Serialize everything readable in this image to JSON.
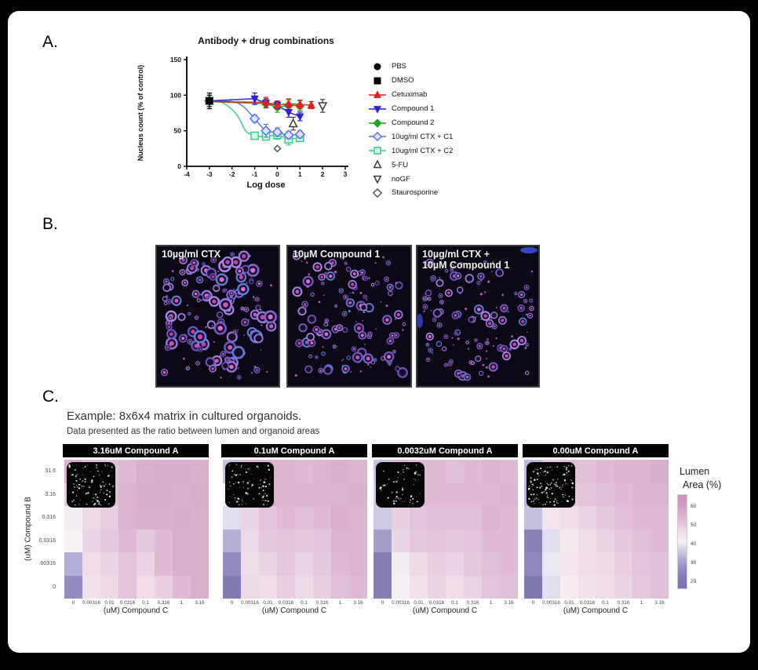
{
  "figure": {
    "panel_a_label": "A.",
    "panel_b_label": "B.",
    "panel_c_label": "C."
  },
  "panel_b": {
    "images": [
      {
        "label_lines": [
          "10µg/ml CTX"
        ]
      },
      {
        "label_lines": [
          "10µM Compound 1"
        ]
      },
      {
        "label_lines": [
          "10µg/ml CTX +",
          "10µM Compound 1"
        ]
      }
    ]
  },
  "panel_c": {
    "title": "Example: 8x6x4 matrix in cultured organoids.",
    "subtitle": "Data presented as the ratio between lumen and organoid areas"
  },
  "chart_data": [
    {
      "type": "scatter",
      "title": "Antibody + drug combinations",
      "xlabel": "Log dose",
      "ylabel": "Nucleus count (% of control)",
      "xlim": [
        -4,
        3
      ],
      "ylim": [
        0,
        150
      ],
      "xticks": [
        -4,
        -3,
        -2,
        -1,
        0,
        1,
        2,
        3
      ],
      "yticks": [
        0,
        50,
        100,
        150
      ],
      "legend_position": "right",
      "series": [
        {
          "name": "PBS",
          "marker": "circle",
          "color": "#000000",
          "filled": true,
          "x": [
            -3
          ],
          "y": [
            92
          ],
          "yerr": [
            11
          ]
        },
        {
          "name": "DMSO",
          "marker": "square",
          "color": "#000000",
          "filled": true,
          "x": [
            -3
          ],
          "y": [
            92
          ],
          "yerr": [
            8
          ]
        },
        {
          "name": "Cetuximab",
          "marker": "triangle-up",
          "color": "#e3201f",
          "filled": true,
          "x": [
            -0.5,
            0,
            0.5,
            1,
            1.5
          ],
          "y": [
            90,
            86,
            88,
            87,
            86
          ],
          "yerr": [
            7,
            6,
            6,
            6,
            5
          ],
          "line": [
            [
              -3,
              91
            ],
            [
              -0.5,
              90
            ],
            [
              0,
              86
            ],
            [
              0.5,
              88
            ],
            [
              1,
              87
            ],
            [
              1.5,
              86
            ]
          ]
        },
        {
          "name": "Compound 1",
          "marker": "triangle-down",
          "color": "#2b23d6",
          "filled": true,
          "x": [
            -1,
            -0.5,
            0,
            0.5,
            1
          ],
          "y": [
            95,
            89,
            86,
            76,
            70
          ],
          "yerr": [
            8,
            6,
            5,
            7,
            6
          ],
          "line": [
            [
              -3,
              92
            ],
            [
              -1,
              95
            ],
            [
              -0.5,
              89
            ],
            [
              0,
              86
            ],
            [
              0.5,
              76
            ],
            [
              1,
              70
            ]
          ]
        },
        {
          "name": "Compound 2",
          "marker": "diamond",
          "color": "#1fa51f",
          "filled": true,
          "x": [
            -0.5,
            0,
            0.5,
            1
          ],
          "y": [
            88,
            83,
            86,
            85
          ],
          "yerr": [
            6,
            7,
            9,
            7
          ],
          "line": [
            [
              -3,
              91
            ],
            [
              -0.5,
              88
            ],
            [
              0,
              83
            ],
            [
              0.5,
              86
            ],
            [
              1,
              85
            ]
          ]
        },
        {
          "name": "10ug/ml CTX + C1",
          "marker": "diamond",
          "color": "#5a71ec",
          "filled": false,
          "fill": "#dde4ff",
          "x": [
            -3,
            -1,
            -0.5,
            0,
            0.5,
            1
          ],
          "y": [
            92,
            67,
            50,
            48,
            44,
            45
          ],
          "yerr": [
            0,
            5,
            9,
            6,
            5,
            5
          ],
          "line": [
            [
              -3,
              92
            ],
            [
              -2,
              91
            ],
            [
              -1.5,
              84
            ],
            [
              -1,
              67
            ],
            [
              -0.5,
              50
            ],
            [
              0,
              48
            ],
            [
              0.5,
              44
            ],
            [
              1,
              45
            ]
          ],
          "smooth": true
        },
        {
          "name": "10ug/ml CTX + C2",
          "marker": "square",
          "color": "#35cd8c",
          "filled": false,
          "fill": "#dcf6ea",
          "x": [
            -3,
            -1,
            -0.5,
            0,
            0.5,
            1
          ],
          "y": [
            92,
            43,
            42,
            44,
            38,
            40
          ],
          "yerr": [
            0,
            4,
            4,
            6,
            8,
            5
          ],
          "line": [
            [
              -3,
              92
            ],
            [
              -2.4,
              89
            ],
            [
              -1.8,
              73
            ],
            [
              -1.4,
              50
            ],
            [
              -1,
              43
            ],
            [
              -0.5,
              42
            ],
            [
              0,
              44
            ],
            [
              0.5,
              39
            ],
            [
              1,
              40
            ]
          ],
          "smooth": true
        },
        {
          "name": "5-FU",
          "marker": "triangle-up",
          "color": "#3a3a3a",
          "filled": false,
          "fill": "#ffffff",
          "x": [
            0.7
          ],
          "y": [
            60
          ],
          "yerr": [
            9
          ]
        },
        {
          "name": "noGF",
          "marker": "triangle-down",
          "color": "#3a3a3a",
          "filled": false,
          "fill": "#ffffff",
          "x": [
            2
          ],
          "y": [
            85
          ],
          "yerr": [
            9
          ]
        },
        {
          "name": "Staurosporine",
          "marker": "diamond",
          "color": "#555555",
          "filled": false,
          "fill": "#ffffff",
          "x": [
            0
          ],
          "y": [
            25
          ],
          "yerr": [
            0
          ],
          "small": true
        }
      ]
    },
    {
      "type": "heatmap",
      "rows": [
        "31.6",
        "3.16",
        "0.316",
        "0.0316",
        ".00316",
        "0"
      ],
      "cols": [
        "0",
        "0.00316",
        "0.01",
        "0.0316",
        "0.1",
        "0.316",
        "1",
        "3.16"
      ],
      "xlabel": "(uM) Compound C",
      "ylabel": "(uM) Compound B",
      "colorbar": {
        "title": [
          "Lumen",
          "Area (%)"
        ],
        "ticks": [
          60,
          50,
          40,
          30,
          20
        ],
        "vmin": 16,
        "vmax": 66
      },
      "colormap": [
        [
          20,
          "#7a74ae"
        ],
        [
          27,
          "#938dbf"
        ],
        [
          33,
          "#b5b0d5"
        ],
        [
          37,
          "#d6d2e7"
        ],
        [
          40,
          "#f7f3f7"
        ],
        [
          43,
          "#f4e8ef"
        ],
        [
          47,
          "#eed9e7"
        ],
        [
          51,
          "#e3c4da"
        ],
        [
          55,
          "#daafcd"
        ],
        [
          60,
          "#d19ec3"
        ],
        [
          66,
          "#ca90ba"
        ]
      ],
      "panels": [
        {
          "title": "3.16uM Compound A",
          "values": [
            [
              55,
              53,
              52,
              53,
              55,
              56,
              56,
              55
            ],
            [
              50,
              51,
              52,
              54,
              56,
              56,
              55,
              56
            ],
            [
              42,
              47,
              49,
              54,
              55,
              55,
              56,
              55
            ],
            [
              40,
              48,
              50,
              53,
              50,
              53,
              55,
              55
            ],
            [
              33,
              46,
              48,
              51,
              48,
              53,
              55,
              55
            ],
            [
              27,
              45,
              47,
              51,
              46,
              49,
              53,
              55
            ]
          ]
        },
        {
          "title": "0.1uM Compound A",
          "values": [
            [
              35,
              54,
              54,
              54,
              53,
              54,
              55,
              54
            ],
            [
              40,
              53,
              54,
              54,
              54,
              54,
              54,
              55
            ],
            [
              38,
              48,
              51,
              53,
              52,
              53,
              55,
              54
            ],
            [
              33,
              47,
              50,
              51,
              50,
              51,
              54,
              54
            ],
            [
              27,
              46,
              48,
              50,
              48,
              50,
              53,
              54
            ],
            [
              22,
              47,
              46,
              49,
              47,
              49,
              52,
              53
            ]
          ]
        },
        {
          "title": "0.0032uM Compound A",
          "values": [
            [
              35,
              54,
              53,
              53,
              52,
              53,
              54,
              53
            ],
            [
              36,
              52,
              53,
              53,
              53,
              53,
              53,
              54
            ],
            [
              36,
              49,
              51,
              52,
              52,
              52,
              54,
              53
            ],
            [
              30,
              48,
              50,
              51,
              50,
              51,
              53,
              53
            ],
            [
              23,
              42,
              47,
              49,
              48,
              50,
              52,
              53
            ],
            [
              23,
              41,
              45,
              48,
              46,
              48,
              51,
              52
            ]
          ]
        },
        {
          "title": "0.00uM Compound A",
          "values": [
            [
              34,
              50,
              52,
              52,
              53,
              54,
              54,
              56
            ],
            [
              33,
              49,
              50,
              51,
              52,
              53,
              54,
              54
            ],
            [
              35,
              44,
              46,
              48,
              50,
              52,
              53,
              53
            ],
            [
              24,
              38,
              43,
              46,
              48,
              50,
              52,
              53
            ],
            [
              26,
              39,
              44,
              46,
              47,
              49,
              51,
              52
            ],
            [
              21,
              38,
              42,
              45,
              46,
              48,
              50,
              52
            ]
          ]
        }
      ]
    }
  ]
}
